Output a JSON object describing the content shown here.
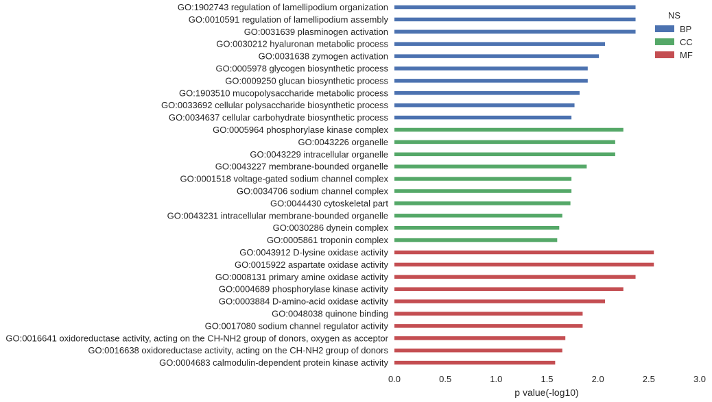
{
  "chart_data": {
    "type": "bar",
    "orientation": "horizontal",
    "xlabel": "p value(-log10)",
    "xlim": [
      0.0,
      3.0
    ],
    "xticks": [
      "0.0",
      "0.5",
      "1.0",
      "1.5",
      "2.0",
      "2.5",
      "3.0"
    ],
    "grid": false,
    "legend": {
      "title": "NS",
      "placement": "top-right",
      "entries": [
        {
          "name": "BP",
          "color": "#4c72b0"
        },
        {
          "name": "CC",
          "color": "#55a868"
        },
        {
          "name": "MF",
          "color": "#c44e52"
        }
      ]
    },
    "bars": [
      {
        "label": "GO:1902743 regulation of lamellipodium organization",
        "value": 2.37,
        "ns": "BP"
      },
      {
        "label": "GO:0010591 regulation of lamellipodium assembly",
        "value": 2.37,
        "ns": "BP"
      },
      {
        "label": "GO:0031639 plasminogen activation",
        "value": 2.37,
        "ns": "BP"
      },
      {
        "label": "GO:0030212 hyaluronan metabolic process",
        "value": 2.07,
        "ns": "BP"
      },
      {
        "label": "GO:0031638 zymogen activation",
        "value": 2.01,
        "ns": "BP"
      },
      {
        "label": "GO:0005978 glycogen biosynthetic process",
        "value": 1.9,
        "ns": "BP"
      },
      {
        "label": "GO:0009250 glucan biosynthetic process",
        "value": 1.9,
        "ns": "BP"
      },
      {
        "label": "GO:1903510 mucopolysaccharide metabolic process",
        "value": 1.82,
        "ns": "BP"
      },
      {
        "label": "GO:0033692 cellular polysaccharide biosynthetic process",
        "value": 1.77,
        "ns": "BP"
      },
      {
        "label": "GO:0034637 cellular carbohydrate biosynthetic process",
        "value": 1.74,
        "ns": "BP"
      },
      {
        "label": "GO:0005964 phosphorylase kinase complex",
        "value": 2.25,
        "ns": "CC"
      },
      {
        "label": "GO:0043226 organelle",
        "value": 2.17,
        "ns": "CC"
      },
      {
        "label": "GO:0043229 intracellular organelle",
        "value": 2.17,
        "ns": "CC"
      },
      {
        "label": "GO:0043227 membrane-bounded organelle",
        "value": 1.89,
        "ns": "CC"
      },
      {
        "label": "GO:0001518 voltage-gated sodium channel complex",
        "value": 1.74,
        "ns": "CC"
      },
      {
        "label": "GO:0034706 sodium channel complex",
        "value": 1.74,
        "ns": "CC"
      },
      {
        "label": "GO:0044430 cytoskeletal part",
        "value": 1.73,
        "ns": "CC"
      },
      {
        "label": "GO:0043231 intracellular membrane-bounded organelle",
        "value": 1.65,
        "ns": "CC"
      },
      {
        "label": "GO:0030286 dynein complex",
        "value": 1.62,
        "ns": "CC"
      },
      {
        "label": "GO:0005861 troponin complex",
        "value": 1.6,
        "ns": "CC"
      },
      {
        "label": "GO:0043912 D-lysine oxidase activity",
        "value": 2.55,
        "ns": "MF"
      },
      {
        "label": "GO:0015922 aspartate oxidase activity",
        "value": 2.55,
        "ns": "MF"
      },
      {
        "label": "GO:0008131 primary amine oxidase activity",
        "value": 2.37,
        "ns": "MF"
      },
      {
        "label": "GO:0004689 phosphorylase kinase activity",
        "value": 2.25,
        "ns": "MF"
      },
      {
        "label": "GO:0003884 D-amino-acid oxidase activity",
        "value": 2.07,
        "ns": "MF"
      },
      {
        "label": "GO:0048038 quinone binding",
        "value": 1.85,
        "ns": "MF"
      },
      {
        "label": "GO:0017080 sodium channel regulator activity",
        "value": 1.85,
        "ns": "MF"
      },
      {
        "label": "GO:0016641 oxidoreductase activity, acting on the CH-NH2 group of donors, oxygen as acceptor",
        "value": 1.68,
        "ns": "MF"
      },
      {
        "label": "GO:0016638 oxidoreductase activity, acting on the CH-NH2 group of donors",
        "value": 1.65,
        "ns": "MF"
      },
      {
        "label": "GO:0004683 calmodulin-dependent protein kinase activity",
        "value": 1.58,
        "ns": "MF"
      }
    ]
  }
}
